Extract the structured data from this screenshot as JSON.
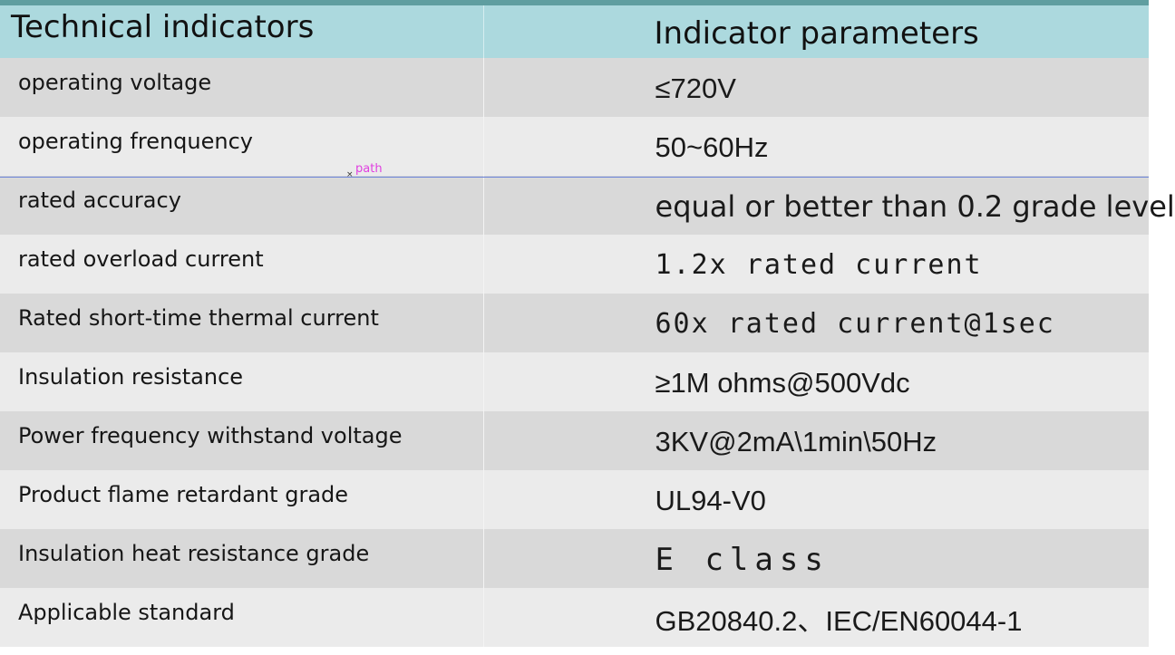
{
  "table": {
    "headers": {
      "indicator": "Technical indicators",
      "parameter": "Indicator parameters"
    },
    "rows": [
      {
        "indicator": "operating voltage",
        "parameter": "≤720V"
      },
      {
        "indicator": "operating frenquency",
        "parameter": "50~60Hz"
      },
      {
        "indicator": "rated accuracy",
        "parameter": "equal or better than 0.2 grade level"
      },
      {
        "indicator": "rated overload current",
        "parameter": "1.2x rated current"
      },
      {
        "indicator": "Rated short-time thermal current",
        "parameter": "60x rated current@1sec"
      },
      {
        "indicator": "Insulation resistance",
        "parameter": "≥1M ohms@500Vdc"
      },
      {
        "indicator": "Power frequency withstand voltage",
        "parameter": "3KV@2mA\\1min\\50Hz"
      },
      {
        "indicator": "Product flame retardant grade",
        "parameter": "UL94-V0"
      },
      {
        "indicator": "Insulation heat resistance grade",
        "parameter": "E class"
      },
      {
        "indicator": "Applicable standard",
        "parameter": "GB20840.2、IEC/EN60044-1"
      }
    ]
  },
  "overlay": {
    "path_label": "path",
    "marker_glyph": "×"
  },
  "colors": {
    "header_bg": "#acd9de",
    "row_dark": "#d9d9d9",
    "row_light": "#ebebeb",
    "top_rule": "#5f9ea0",
    "guide_line": "#6a82d8",
    "path_label": "#e040e0"
  }
}
